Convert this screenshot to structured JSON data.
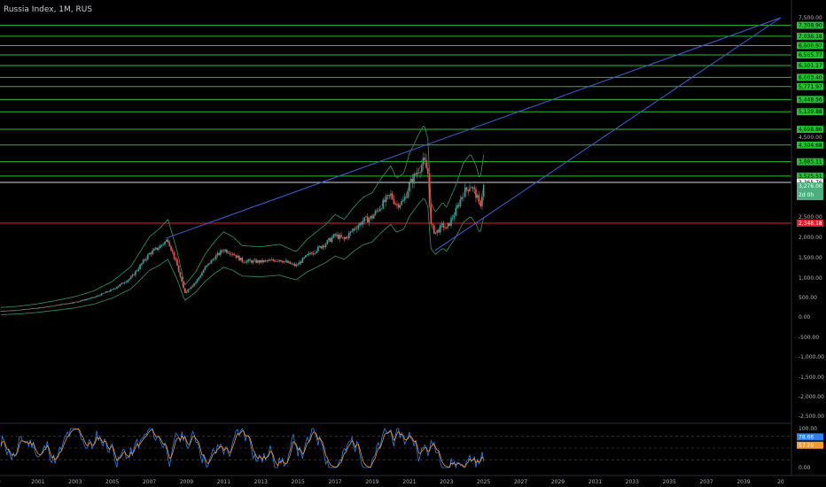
{
  "header": {
    "title": "Russia Index, 1M, RUS"
  },
  "colors": {
    "background": "#000000",
    "up_candle": "#26a69a",
    "down_candle": "#ef5350",
    "level_line": "#2ebd2e",
    "support_line": "#e01e2b",
    "trend_line": "#3f5fd9",
    "band": "#2e9b6b",
    "stoch_k": "#2f80ed",
    "stoch_d": "#f59a2f"
  },
  "chart_data": {
    "type": "candlestick",
    "title": "Russia Index, 1M, RUS",
    "x_ticks": [
      "99",
      "2001",
      "2003",
      "2005",
      "2007",
      "2009",
      "2011",
      "2013",
      "2015",
      "2017",
      "2019",
      "2021",
      "2023",
      "2025",
      "2027",
      "2029",
      "2031",
      "2033",
      "2035",
      "2037",
      "2039",
      "20"
    ],
    "y_ticks": [
      "7,500.00",
      "4,500.00",
      "2,500.00",
      "2,000.00",
      "1,500.00",
      "1,000.00",
      "500.00",
      "0.00",
      "-500.00",
      "-1,000.00",
      "-1,500.00",
      "-2,000.00",
      "-2,500.00"
    ],
    "ylim": [
      -2700,
      7700
    ],
    "levels": [
      {
        "value": 7308.9,
        "label": "7,308.90",
        "kind": "resistance"
      },
      {
        "value": 7036.18,
        "label": "7,036.18",
        "kind": "resistance"
      },
      {
        "value": 6800.97,
        "label": "6,800.97",
        "kind": "resistance"
      },
      {
        "value": 6565.77,
        "label": "6,565.77",
        "kind": "resistance"
      },
      {
        "value": 6301.17,
        "label": "6,301.17",
        "kind": "resistance"
      },
      {
        "value": 6003.4,
        "label": "6,003.40",
        "kind": "resistance"
      },
      {
        "value": 5771.97,
        "label": "5,771.97",
        "kind": "resistance"
      },
      {
        "value": 5448.56,
        "label": "5,448.56",
        "kind": "resistance"
      },
      {
        "value": 5139.88,
        "label": "5,139.88",
        "kind": "resistance"
      },
      {
        "value": 4698.86,
        "label": "4,698.86",
        "kind": "resistance"
      },
      {
        "value": 4304.68,
        "label": "4,304.68",
        "kind": "resistance"
      },
      {
        "value": 3885.11,
        "label": "3,885.11",
        "kind": "resistance"
      },
      {
        "value": 3525.51,
        "label": "3,525.51",
        "kind": "resistance"
      },
      {
        "value": 3365.76,
        "label": "3,365.76",
        "kind": "white"
      },
      {
        "value": 3276.0,
        "label": "3,276.00",
        "kind": "current",
        "sublabel": "2d 0h"
      },
      {
        "value": 2348.18,
        "label": "2,348.18",
        "kind": "support"
      }
    ],
    "close_series": {
      "x": [
        1999.0,
        2000.0,
        2001.0,
        2002.0,
        2003.0,
        2004.0,
        2005.0,
        2006.0,
        2007.0,
        2007.5,
        2008.0,
        2008.5,
        2008.9,
        2009.5,
        2010.0,
        2010.5,
        2011.0,
        2011.5,
        2012.0,
        2013.0,
        2014.0,
        2014.9,
        2015.5,
        2016.0,
        2016.5,
        2017.0,
        2017.5,
        2018.0,
        2018.5,
        2019.0,
        2019.5,
        2020.0,
        2020.3,
        2020.7,
        2021.0,
        2021.5,
        2021.8,
        2022.0,
        2022.15,
        2022.4,
        2022.8,
        2023.0,
        2023.5,
        2023.9,
        2024.3,
        2024.6,
        2024.8,
        2025.0
      ],
      "y": [
        150,
        180,
        230,
        300,
        380,
        500,
        700,
        1000,
        1600,
        1750,
        1950,
        1300,
        620,
        900,
        1250,
        1500,
        1700,
        1600,
        1420,
        1400,
        1450,
        1300,
        1550,
        1700,
        1850,
        2050,
        1950,
        2200,
        2400,
        2500,
        2800,
        3050,
        2800,
        2900,
        3300,
        3700,
        3900,
        3600,
        2300,
        2100,
        2300,
        2200,
        2650,
        3100,
        3300,
        3050,
        2750,
        3276
      ]
    },
    "trend_lines": [
      {
        "from": {
          "x": 2007.9,
          "y": 1980
        },
        "to": {
          "x": 2041.0,
          "y": 7500
        }
      },
      {
        "from": {
          "x": 2022.4,
          "y": 1680
        },
        "to": {
          "x": 2041.0,
          "y": 7500
        }
      }
    ],
    "oscillator": {
      "y_ticks": [
        "100.00",
        "0.00"
      ],
      "k_label": "78.66",
      "d_label": "57.29",
      "k_value": 78.66,
      "d_value": 57.29
    }
  }
}
